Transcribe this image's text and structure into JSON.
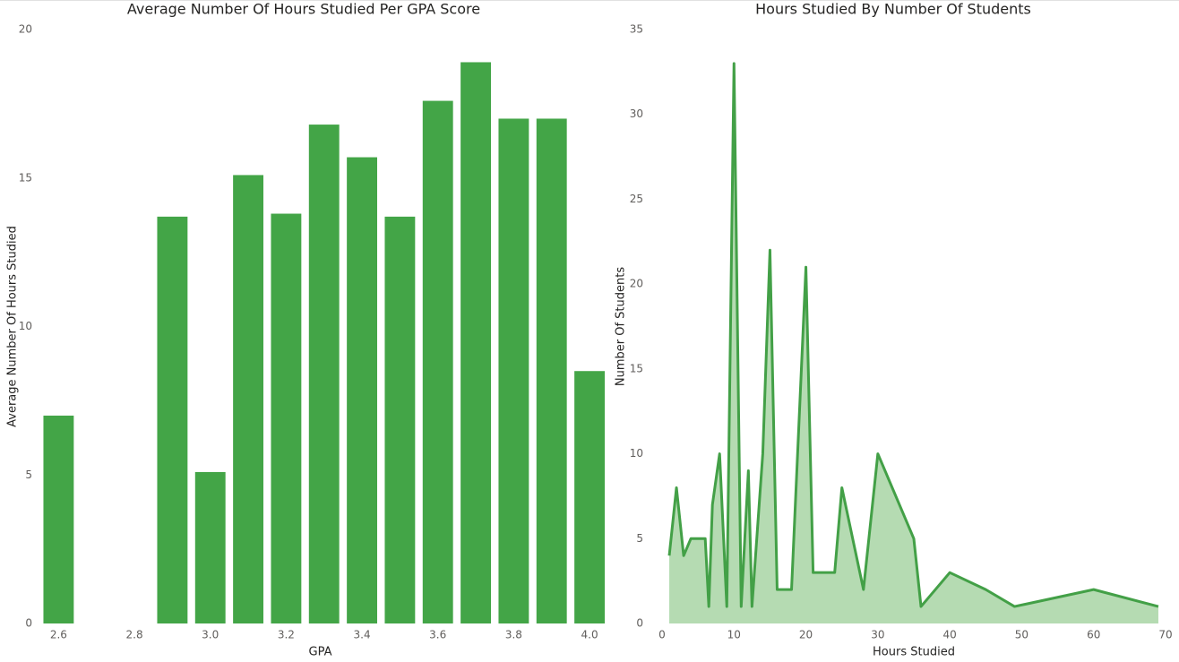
{
  "chart_data": [
    {
      "type": "bar",
      "title": "Average Number Of Hours Studied Per GPA Score",
      "x_label": "GPA",
      "y_label": "Average Number Of Hours Studied",
      "x": [
        2.6,
        2.9,
        3.0,
        3.1,
        3.2,
        3.3,
        3.4,
        3.5,
        3.6,
        3.7,
        3.8,
        3.9,
        4.0
      ],
      "values": [
        7.0,
        13.7,
        5.1,
        15.1,
        13.8,
        16.8,
        15.7,
        13.7,
        17.6,
        18.9,
        17.0,
        17.0,
        8.5
      ],
      "color": "#43a547",
      "xlim": [
        2.54,
        4.04
      ],
      "ylim": [
        0,
        20
      ],
      "xticks": [
        2.6,
        2.8,
        {
          "value": 3,
          "label": "3.0"
        },
        3.2,
        3.4,
        3.6,
        3.8,
        {
          "value": 4,
          "label": "4.0"
        }
      ],
      "yticks": [
        0,
        5,
        10,
        15,
        20
      ],
      "grid": false
    },
    {
      "type": "area",
      "title": "Hours Studied By Number Of Students",
      "x_label": "Hours Studied",
      "y_label": "Number Of Students",
      "x": [
        1,
        2,
        3,
        4,
        6,
        6.5,
        7,
        8,
        9,
        10,
        11,
        12,
        12.5,
        14,
        15,
        16,
        18,
        20,
        21,
        24,
        25,
        28,
        30,
        35,
        36,
        40,
        45,
        49,
        60,
        69
      ],
      "values": [
        4,
        8,
        4,
        5,
        5,
        1,
        7,
        10,
        1,
        33,
        1,
        9,
        1,
        10,
        22,
        2,
        2,
        21,
        3,
        3,
        8,
        2,
        10,
        5,
        1,
        3,
        2,
        1,
        2,
        1
      ],
      "color": "#43a047",
      "fill": "#b5dbb2",
      "xlim": [
        0,
        70
      ],
      "ylim": [
        0,
        35
      ],
      "xticks": [
        0,
        10,
        20,
        30,
        40,
        50,
        60,
        70
      ],
      "yticks": [
        0,
        5,
        10,
        15,
        20,
        25,
        30,
        35
      ],
      "grid": false
    }
  ]
}
